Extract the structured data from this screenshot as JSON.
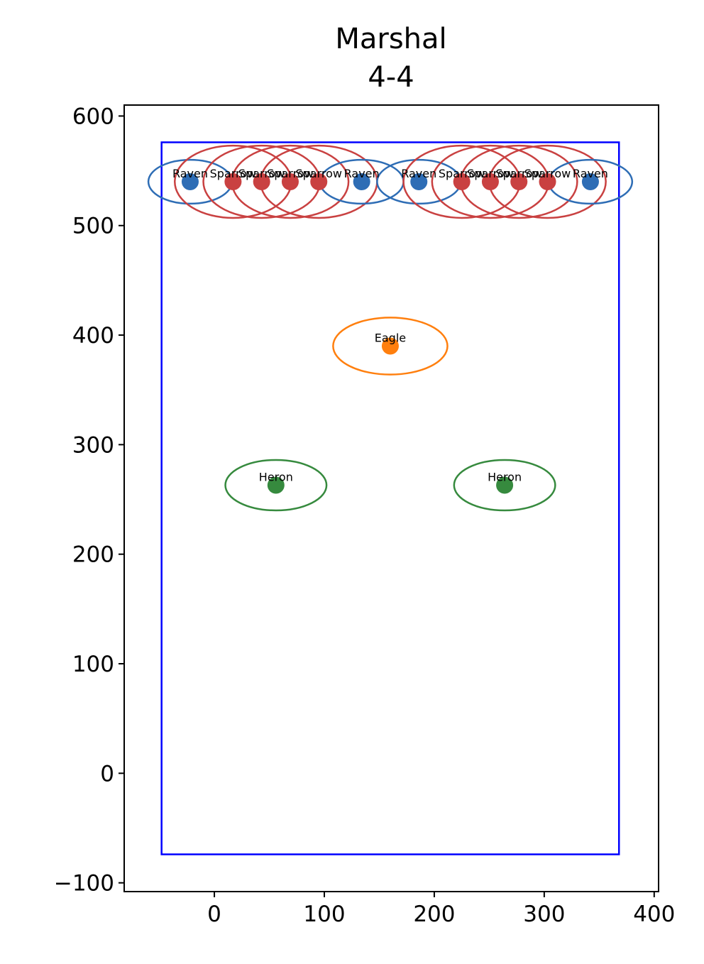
{
  "chart_data": {
    "type": "scatter",
    "title": "Marshal",
    "subtitle": "4-4",
    "xlabel": "",
    "ylabel": "",
    "xlim": [
      -82,
      404
    ],
    "ylim": [
      -108,
      610
    ],
    "xticks": [
      0,
      100,
      200,
      300,
      400
    ],
    "yticks": [
      -100,
      0,
      100,
      200,
      300,
      400,
      500,
      600
    ],
    "xtick_labels": [
      "0",
      "100",
      "200",
      "300",
      "400"
    ],
    "ytick_labels": [
      "−100",
      "0",
      "100",
      "200",
      "300",
      "400",
      "500",
      "600"
    ],
    "grid": false,
    "field": {
      "x0": -48,
      "y0": -74,
      "x1": 368,
      "y1": 576,
      "color": "#0000ff"
    },
    "colors": {
      "Raven": "#2e6db5",
      "Sparrow": "#c94141",
      "Eagle": "#ff7f0e",
      "Heron": "#368a3e"
    },
    "points": [
      {
        "label": "Raven",
        "x": -22,
        "y": 540,
        "rx": 38,
        "ry": 20,
        "group": "Raven"
      },
      {
        "label": "Sparrow",
        "x": 17,
        "y": 540,
        "rx": 53,
        "ry": 33,
        "group": "Sparrow"
      },
      {
        "label": "Sparrow",
        "x": 43,
        "y": 540,
        "rx": 53,
        "ry": 33,
        "group": "Sparrow"
      },
      {
        "label": "Sparrow",
        "x": 69,
        "y": 540,
        "rx": 53,
        "ry": 33,
        "group": "Sparrow"
      },
      {
        "label": "Sparrow",
        "x": 95,
        "y": 540,
        "rx": 53,
        "ry": 33,
        "group": "Sparrow"
      },
      {
        "label": "Raven",
        "x": 134,
        "y": 540,
        "rx": 38,
        "ry": 20,
        "group": "Raven"
      },
      {
        "label": "Raven",
        "x": 186,
        "y": 540,
        "rx": 38,
        "ry": 20,
        "group": "Raven"
      },
      {
        "label": "Sparrow",
        "x": 225,
        "y": 540,
        "rx": 53,
        "ry": 33,
        "group": "Sparrow"
      },
      {
        "label": "Sparrow",
        "x": 251,
        "y": 540,
        "rx": 53,
        "ry": 33,
        "group": "Sparrow"
      },
      {
        "label": "Sparrow",
        "x": 277,
        "y": 540,
        "rx": 53,
        "ry": 33,
        "group": "Sparrow"
      },
      {
        "label": "Sparrow",
        "x": 303,
        "y": 540,
        "rx": 53,
        "ry": 33,
        "group": "Sparrow"
      },
      {
        "label": "Raven",
        "x": 342,
        "y": 540,
        "rx": 38,
        "ry": 20,
        "group": "Raven"
      },
      {
        "label": "Eagle",
        "x": 160,
        "y": 390,
        "rx": 52,
        "ry": 26,
        "group": "Eagle"
      },
      {
        "label": "Heron",
        "x": 56,
        "y": 263,
        "rx": 46,
        "ry": 23,
        "group": "Heron"
      },
      {
        "label": "Heron",
        "x": 264,
        "y": 263,
        "rx": 46,
        "ry": 23,
        "group": "Heron"
      }
    ]
  }
}
